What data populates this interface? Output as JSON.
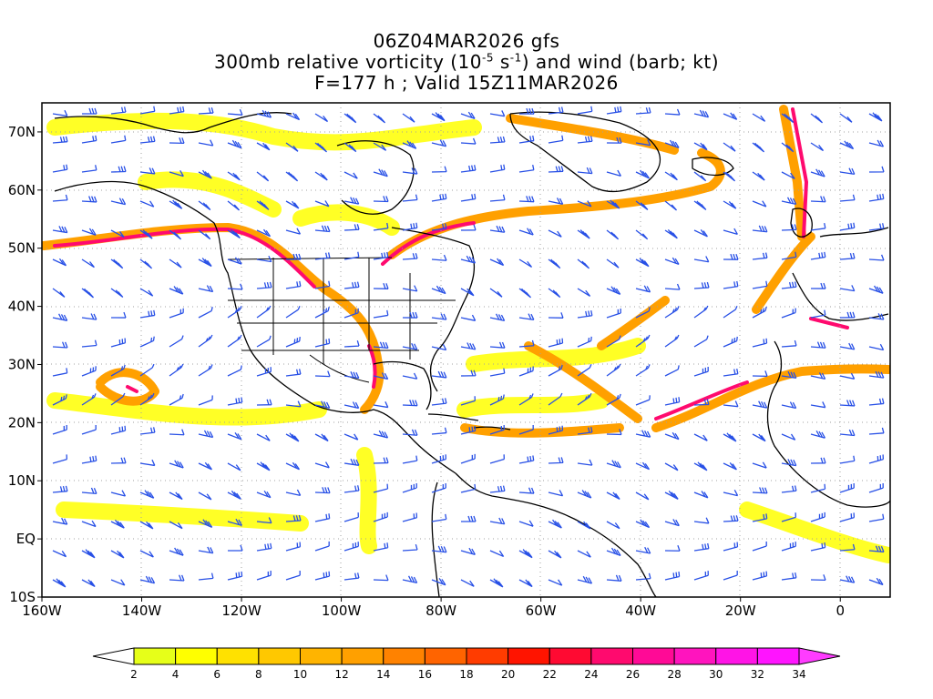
{
  "title": {
    "line1": "06Z04MAR2026 gfs",
    "line2_pre": "300mb relative vorticity (10",
    "line2_exp1": "-5",
    "line2_mid": " s",
    "line2_exp2": "-1",
    "line2_post": ") and wind (barb; kt)",
    "line3": "F=177 h ; Valid 15Z11MAR2026"
  },
  "map": {
    "lon_range": [
      -160,
      10
    ],
    "lat_range": [
      -10,
      75
    ],
    "lat_labels": [
      "70N",
      "60N",
      "50N",
      "40N",
      "30N",
      "20N",
      "10N",
      "EQ",
      "10S"
    ],
    "lon_labels": [
      "160W",
      "140W",
      "120W",
      "100W",
      "80W",
      "60W",
      "40W",
      "20W",
      "0"
    ],
    "lat_values": [
      70,
      60,
      50,
      40,
      30,
      20,
      10,
      0,
      -10
    ],
    "lon_values": [
      -160,
      -140,
      -120,
      -100,
      -80,
      -60,
      -40,
      -20,
      0
    ],
    "colors": {
      "coast": "#000000",
      "barb": "#2850e6",
      "grid": "#a0a0a0"
    }
  },
  "colorbar": {
    "labels": [
      "2",
      "4",
      "6",
      "8",
      "10",
      "12",
      "14",
      "16",
      "18",
      "20",
      "22",
      "24",
      "26",
      "28",
      "30",
      "32",
      "34"
    ],
    "colors": [
      "#ffffff",
      "#e6ff19",
      "#ffff00",
      "#ffe100",
      "#ffc800",
      "#ffb400",
      "#ffa000",
      "#ff8200",
      "#ff6400",
      "#ff3c00",
      "#ff1400",
      "#ff0a32",
      "#ff0a6e",
      "#ff0a96",
      "#ff14be",
      "#ff14e6",
      "#ff14ff",
      "#ff3cff"
    ]
  }
}
